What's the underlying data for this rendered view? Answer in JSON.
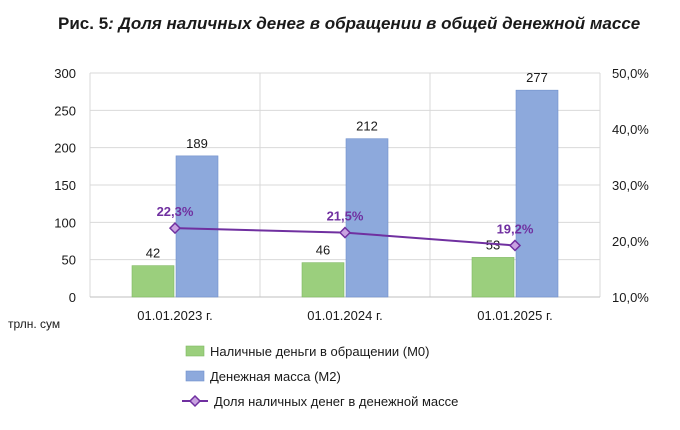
{
  "chart_data": {
    "type": "bar",
    "title_prefix": "Рис. 5",
    "title_rest": ": Доля наличных денег в обращении в общей денежной массе",
    "unit_label": "трлн. сум",
    "categories": [
      "01.01.2023 г.",
      "01.01.2024 г.",
      "01.01.2025 г."
    ],
    "ylim": [
      0,
      300
    ],
    "yticks": [
      "0",
      "50",
      "100",
      "150",
      "200",
      "250",
      "300"
    ],
    "ylim_right": [
      10,
      50
    ],
    "yticks_right": [
      "10,0%",
      "20,0%",
      "30,0%",
      "40,0%",
      "50,0%"
    ],
    "series": [
      {
        "name": "Наличные деньги в обращении (М0)",
        "type": "bar",
        "axis": "left",
        "color": "#9bcf7d",
        "values": [
          42,
          46,
          53
        ],
        "labels": [
          "42",
          "46",
          "53"
        ]
      },
      {
        "name": "Денежная масса (М2)",
        "type": "bar",
        "axis": "left",
        "color": "#8da9dc",
        "values": [
          189,
          212,
          277
        ],
        "labels": [
          "189",
          "212",
          "277"
        ]
      },
      {
        "name": "Доля наличных денег в денежной массе",
        "type": "line",
        "axis": "right",
        "color": "#7030a0",
        "values": [
          22.3,
          21.5,
          19.2
        ],
        "labels": [
          "22,3%",
          "21,5%",
          "19,2%"
        ]
      }
    ],
    "legend": "bottom"
  }
}
